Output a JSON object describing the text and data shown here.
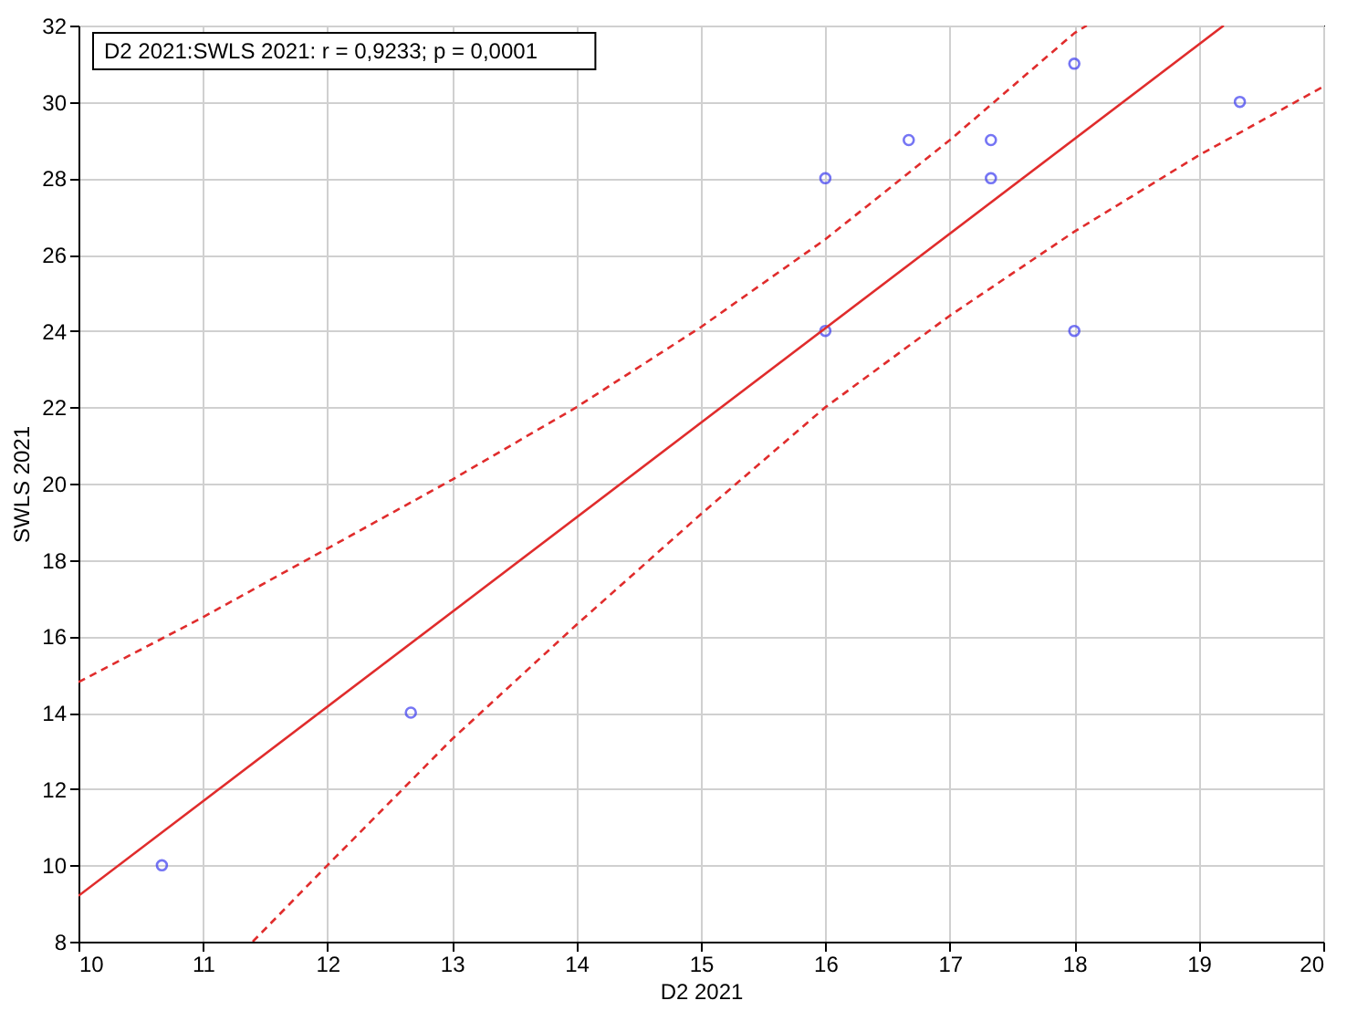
{
  "chart_data": {
    "type": "scatter",
    "xlabel": "D2 2021",
    "ylabel": "SWLS 2021",
    "annotations": [
      "D2 2021:SWLS 2021:   r = 0,9233; p = 0,0001"
    ],
    "xlim": [
      10,
      20
    ],
    "xticks": [
      10,
      11,
      12,
      13,
      14,
      15,
      16,
      17,
      18,
      19,
      20
    ],
    "ylim": [
      8,
      32
    ],
    "yticks": [
      8,
      10,
      12,
      14,
      16,
      18,
      20,
      22,
      24,
      26,
      28,
      30,
      32
    ],
    "grid": true,
    "series": [
      {
        "marker": "circle",
        "color": "#3b3bf0",
        "x": [
          10.67,
          12.67,
          16,
          16,
          16.67,
          17.33,
          17.33,
          18,
          18,
          19.33
        ],
        "values": [
          10,
          14,
          28,
          24,
          29,
          29,
          28,
          31,
          24,
          30
        ]
      },
      {
        "type": "line",
        "marker": "none",
        "color": "#e02c2c",
        "line_style": "solid",
        "x": [
          10,
          19.2
        ],
        "values": [
          9.2,
          32
        ]
      },
      {
        "type": "line",
        "marker": "none",
        "color": "#e02c2c",
        "line_style": "dashed",
        "x": [
          10,
          11,
          12,
          13,
          14,
          15,
          16,
          17,
          18,
          18.1
        ],
        "values": [
          14.8,
          16.5,
          18.3,
          20.1,
          22,
          24.1,
          26.4,
          29,
          31.8,
          32
        ]
      },
      {
        "type": "line",
        "marker": "none",
        "color": "#e02c2c",
        "line_style": "dashed",
        "x": [
          11.4,
          12,
          13,
          14,
          15,
          16,
          17,
          18,
          19,
          20
        ],
        "values": [
          8,
          10,
          13.3,
          16.3,
          19.2,
          22,
          24.4,
          26.6,
          28.6,
          30.4
        ]
      }
    ]
  }
}
